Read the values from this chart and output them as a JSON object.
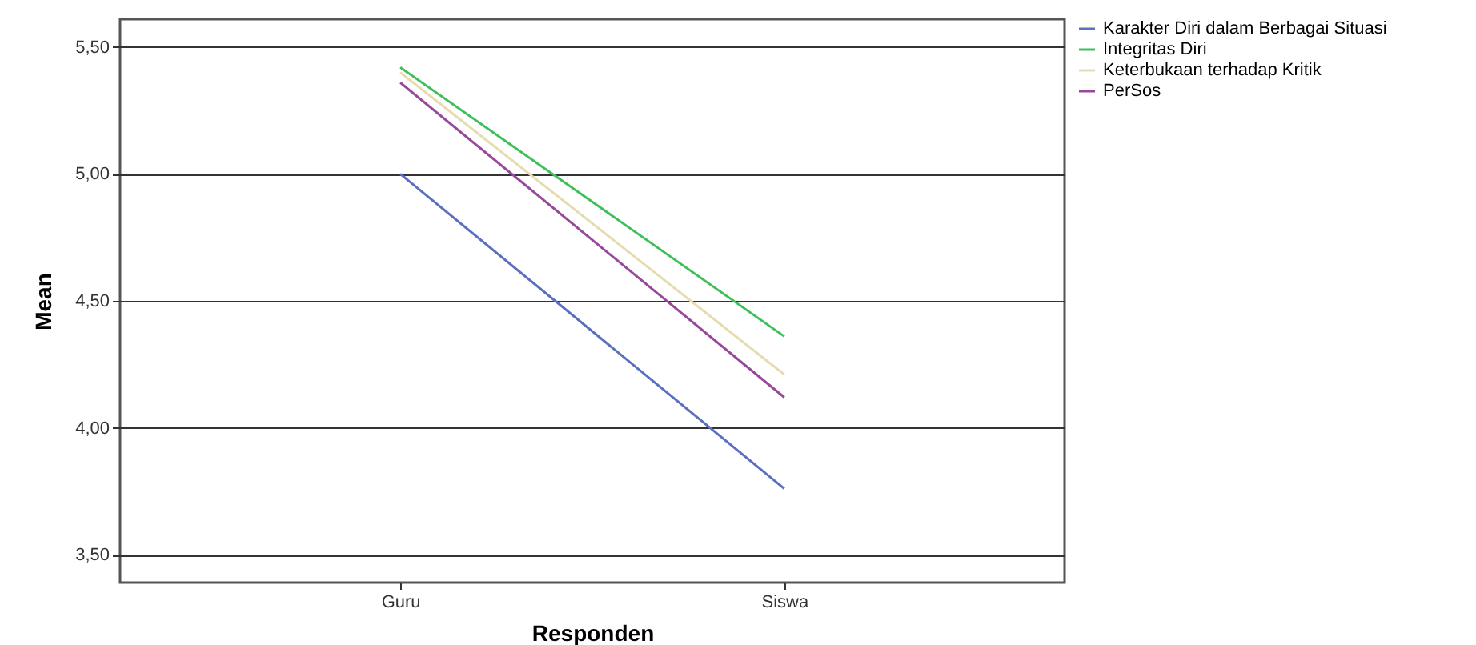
{
  "chart_data": {
    "type": "line",
    "xlabel": "Responden",
    "ylabel": "Mean",
    "categories": [
      "Guru",
      "Siswa"
    ],
    "series": [
      {
        "name": "Karakter Diri dalam Berbagai Situasi",
        "color": "#5b6fc0",
        "values": [
          5.0,
          3.76
        ]
      },
      {
        "name": "Integritas Diri",
        "color": "#3fbf5a",
        "values": [
          5.42,
          4.36
        ]
      },
      {
        "name": "Keterbukaan terhadap Kritik",
        "color": "#e6dcb0",
        "values": [
          5.4,
          4.21
        ]
      },
      {
        "name": "PerSos",
        "color": "#98489a",
        "values": [
          5.36,
          4.12
        ]
      }
    ],
    "ylim": [
      3.39,
      5.61
    ],
    "yticks": [
      {
        "value": 3.5,
        "label": "3,50"
      },
      {
        "value": 4,
        "label": "4,00"
      },
      {
        "value": 4.5,
        "label": "4,50"
      },
      {
        "value": 5,
        "label": "5,00"
      },
      {
        "value": 5.5,
        "label": "5,50"
      }
    ],
    "grid": "y",
    "legend": "top right",
    "marker": "none",
    "line_style": "solid"
  }
}
